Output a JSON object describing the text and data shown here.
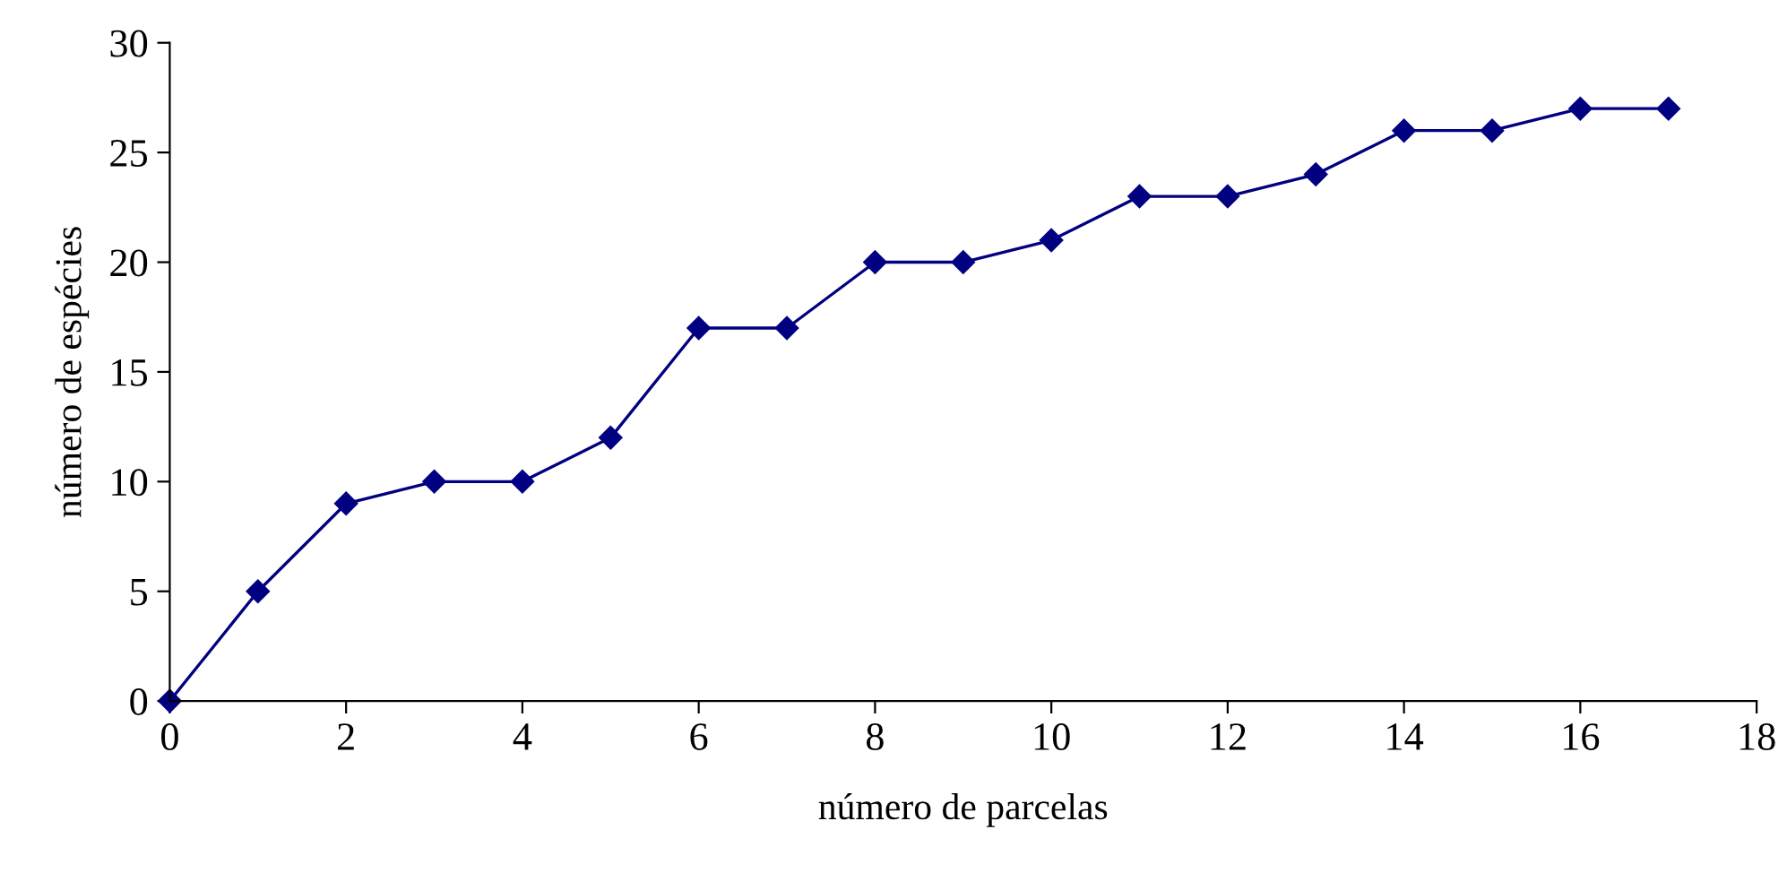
{
  "chart_data": {
    "type": "line",
    "xlabel": "número de parcelas",
    "ylabel": "número de espécies",
    "x": [
      0,
      1,
      2,
      3,
      4,
      5,
      6,
      7,
      8,
      9,
      10,
      11,
      12,
      13,
      14,
      15,
      16,
      17
    ],
    "series": [
      {
        "color": "#000080",
        "values": [
          0,
          5,
          9,
          10,
          10,
          12,
          17,
          17,
          20,
          20,
          21,
          23,
          23,
          24,
          26,
          26,
          27,
          27
        ]
      }
    ],
    "xlim": [
      0,
      18
    ],
    "xticks": [
      0,
      2,
      4,
      6,
      8,
      10,
      12,
      14,
      16,
      18
    ],
    "ylim": [
      0,
      30
    ],
    "yticks": [
      0,
      5,
      10,
      15,
      20,
      25,
      30
    ],
    "grid": false,
    "legend": false,
    "marker": "diamond",
    "line_style": "solid"
  }
}
